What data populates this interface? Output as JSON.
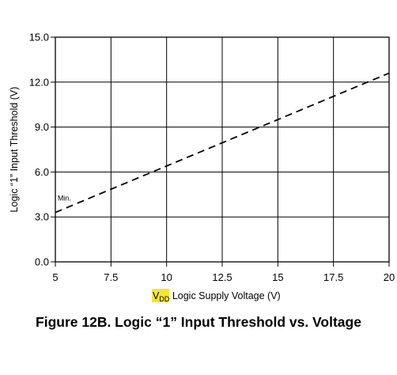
{
  "chart_data": {
    "type": "line",
    "title": "",
    "xlabel": {
      "highlight_main": "V",
      "highlight_sub": "DD",
      "rest": " Logic Supply Voltage (V)",
      "highlight_color": "#f5e72a"
    },
    "ylabel": "Logic “1” Input Threshold (V)",
    "xlim": [
      5,
      20
    ],
    "ylim": [
      0.0,
      15.0
    ],
    "x_ticks": [
      "5",
      "7.5",
      "10",
      "12.5",
      "15",
      "17.5",
      "20"
    ],
    "y_ticks": [
      "0.0",
      "3.0",
      "6.0",
      "9.0",
      "12.0",
      "15.0"
    ],
    "grid": true,
    "series": [
      {
        "name": "",
        "style": "dashed",
        "color": "#000000",
        "x": [
          5,
          20
        ],
        "y": [
          3.3,
          12.6
        ]
      }
    ],
    "annotations": [
      {
        "text": "Min.",
        "x": 5.1,
        "y": 4.1
      }
    ]
  },
  "caption": "Figure 12B. Logic “1” Input Threshold vs. Voltage"
}
